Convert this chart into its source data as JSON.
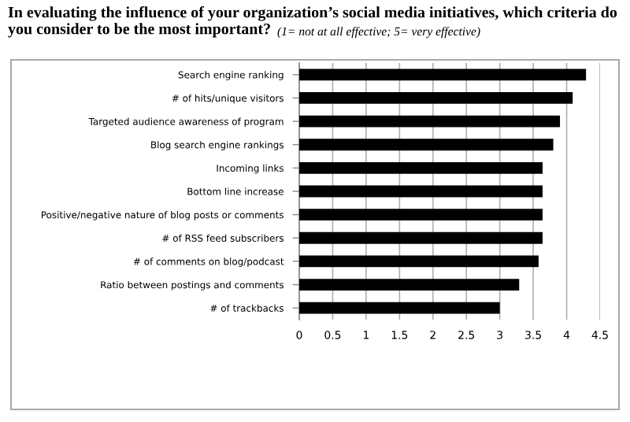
{
  "chart_data": {
    "type": "bar",
    "orientation": "horizontal",
    "title": "In evaluating the influence of your organization’s social media initiatives, which criteria do you consider to be the most important?",
    "subtitle": "(1= not at all effective; 5= very effective)",
    "categories": [
      "Search engine ranking",
      "# of hits/unique visitors",
      "Targeted audience awareness of program",
      "Blog search engine rankings",
      "Incoming links",
      "Bottom line increase",
      "Positive/negative nature of blog posts or comments",
      "# of RSS feed subscribers",
      "# of comments on blog/podcast",
      "Ratio between postings and comments",
      "# of trackbacks"
    ],
    "values": [
      4.29,
      4.09,
      3.9,
      3.8,
      3.64,
      3.64,
      3.64,
      3.64,
      3.58,
      3.29,
      3.0
    ],
    "color": "#000000",
    "xlim": [
      0,
      4.5
    ],
    "xticks": [
      0,
      0.5,
      1,
      1.5,
      2,
      2.5,
      3,
      3.5,
      4,
      4.5
    ],
    "grid": "x"
  }
}
